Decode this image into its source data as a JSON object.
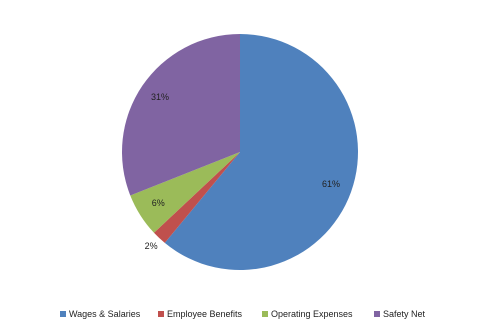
{
  "chart_data": {
    "type": "pie",
    "categories": [
      "Wages & Salaries",
      "Employee Benefits",
      "Operating Expenses",
      "Safety Net"
    ],
    "values": [
      61,
      2,
      6,
      31
    ],
    "value_labels": [
      "61%",
      "2%",
      "6%",
      "31%"
    ],
    "colors": [
      "#4f81bd",
      "#c0504d",
      "#9bbb59",
      "#8064a2"
    ],
    "legend": "bottom"
  }
}
